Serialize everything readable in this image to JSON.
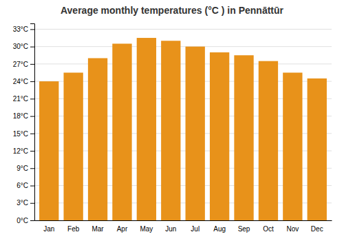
{
  "chart_data": {
    "type": "bar",
    "title": "Average monthly temperatures (°C ) in Pennāttūr",
    "categories": [
      "Jan",
      "Feb",
      "Mar",
      "Apr",
      "May",
      "Jun",
      "Jul",
      "Aug",
      "Sep",
      "Oct",
      "Nov",
      "Dec"
    ],
    "values": [
      24.0,
      25.5,
      28.0,
      30.5,
      31.5,
      31.0,
      30.0,
      29.0,
      28.5,
      27.5,
      25.5,
      24.5
    ],
    "color": "#E8921A",
    "ylim": [
      0,
      34
    ],
    "yticks": [
      {
        "value": 0,
        "label": "0°C"
      },
      {
        "value": 3,
        "label": "3°C"
      },
      {
        "value": 6,
        "label": "6°C"
      },
      {
        "value": 9,
        "label": "9°C"
      },
      {
        "value": 12,
        "label": "12°C"
      },
      {
        "value": 15,
        "label": "15°C"
      },
      {
        "value": 18,
        "label": "18°C"
      },
      {
        "value": 21,
        "label": "21°C"
      },
      {
        "value": 24,
        "label": "24°C"
      },
      {
        "value": 27,
        "label": "27°C"
      },
      {
        "value": 30,
        "label": "30°C"
      },
      {
        "value": 33,
        "label": "33°C"
      }
    ],
    "grid": true
  }
}
